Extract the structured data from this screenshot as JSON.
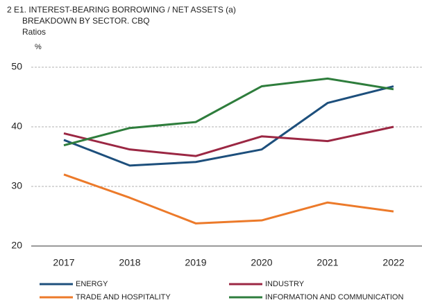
{
  "chart_data": {
    "type": "line",
    "title": "2 E1. INTEREST-BEARING BORROWING / NET ASSETS (a)",
    "subtitle": "BREAKDOWN BY SECTOR. CBQ",
    "ylabel": "Ratios",
    "yunit": "%",
    "categories": [
      "2017",
      "2018",
      "2019",
      "2020",
      "2021",
      "2022"
    ],
    "series": [
      {
        "name": "ENERGY",
        "color": "#1d4f7c",
        "values": [
          37.8,
          33.5,
          34.1,
          36.2,
          44.0,
          46.8
        ]
      },
      {
        "name": "INDUSTRY",
        "color": "#9b2743",
        "values": [
          38.9,
          36.2,
          35.1,
          38.4,
          37.6,
          40.0
        ]
      },
      {
        "name": "TRADE AND HOSPITALITY",
        "color": "#ec7a2a",
        "values": [
          32.0,
          28.1,
          23.8,
          24.3,
          27.3,
          25.8
        ]
      },
      {
        "name": "INFORMATION AND COMMUNICATION",
        "color": "#2e7d3c",
        "values": [
          36.9,
          39.8,
          40.8,
          46.8,
          48.1,
          46.3
        ]
      }
    ],
    "ylim": [
      20,
      50
    ],
    "yticks": [
      20,
      30,
      40,
      50
    ],
    "grid": true
  }
}
